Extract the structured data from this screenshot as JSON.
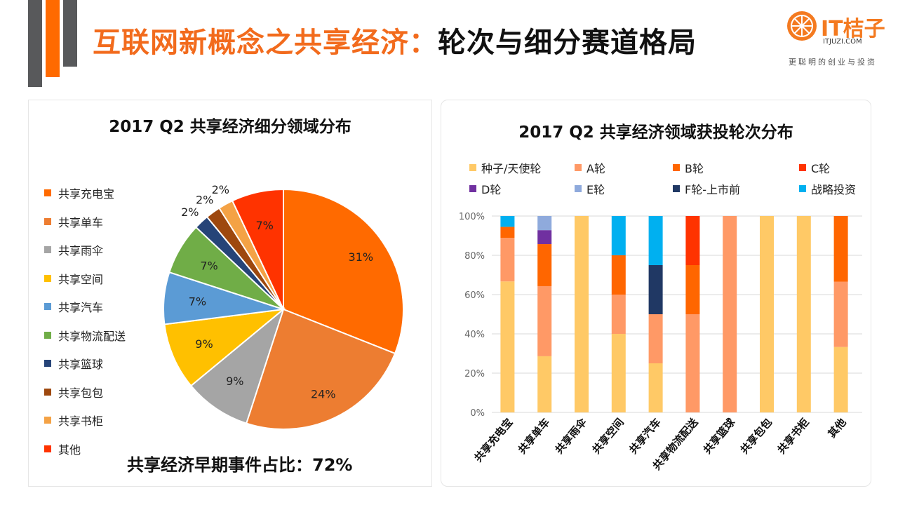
{
  "slide": {
    "title_part1": "互联网新概念之共享经济：",
    "title_part2": "轮次与细分赛道格局",
    "accent_color": "#f26b1d"
  },
  "logo": {
    "icon": "orange-slice-icon",
    "name": "IT桔子",
    "url": "ITJUZI.COM",
    "slogan": "更聪明的创业与投资"
  },
  "summary": {
    "label": "共享经济早期事件占比：72%"
  },
  "chart_data": [
    {
      "type": "pie",
      "title": "2017 Q2 共享经济细分领域分布",
      "legend_position": "left",
      "categories": [
        "共享充电宝",
        "共享单车",
        "共享雨伞",
        "共享空间",
        "共享汽车",
        "共享物流配送",
        "共享篮球",
        "共享包包",
        "共享书柜",
        "其他"
      ],
      "values": [
        31,
        24,
        9,
        9,
        7,
        7,
        2,
        2,
        2,
        7
      ],
      "labels": [
        "31%",
        "24%",
        "9%",
        "9%",
        "7%",
        "7%",
        "2%",
        "2%",
        "2%",
        "7%"
      ],
      "colors": [
        "#ff6a00",
        "#ed7d31",
        "#a5a5a5",
        "#ffc000",
        "#5b9bd5",
        "#70ad47",
        "#264478",
        "#9e480e",
        "#f4a245",
        "#ff3300"
      ]
    },
    {
      "type": "bar",
      "stacked": true,
      "normalized": true,
      "title": "2017 Q2 共享经济领域获投轮次分布",
      "legend_position": "top",
      "categories": [
        "共享充电宝",
        "共享单车",
        "共享雨伞",
        "共享空间",
        "共享汽车",
        "共享物流配送",
        "共享篮球",
        "共享包包",
        "共享书柜",
        "其他"
      ],
      "ylim": [
        0,
        100
      ],
      "yticks": [
        "0%",
        "20%",
        "40%",
        "60%",
        "80%",
        "100%"
      ],
      "grid": true,
      "series": [
        {
          "name": "种子/天使轮",
          "color": "#ffc966",
          "values": [
            66.7,
            28.6,
            100,
            40,
            25,
            0,
            0,
            100,
            100,
            33.3
          ]
        },
        {
          "name": "A轮",
          "color": "#ff9966",
          "values": [
            22.2,
            35.7,
            0,
            20,
            25,
            50,
            100,
            0,
            0,
            33.3
          ]
        },
        {
          "name": "B轮",
          "color": "#ff6600",
          "values": [
            5.6,
            21.4,
            0,
            20,
            0,
            25,
            0,
            0,
            0,
            33.4
          ]
        },
        {
          "name": "C轮",
          "color": "#ff3300",
          "values": [
            0,
            0,
            0,
            0,
            0,
            25,
            0,
            0,
            0,
            0
          ]
        },
        {
          "name": "D轮",
          "color": "#7030a0",
          "values": [
            0,
            7.1,
            0,
            0,
            0,
            0,
            0,
            0,
            0,
            0
          ]
        },
        {
          "name": "E轮",
          "color": "#8faadc",
          "values": [
            0,
            7.2,
            0,
            0,
            0,
            0,
            0,
            0,
            0,
            0
          ]
        },
        {
          "name": "F轮-上市前",
          "color": "#203864",
          "values": [
            0,
            0,
            0,
            0,
            25,
            0,
            0,
            0,
            0,
            0
          ]
        },
        {
          "name": "战略投资",
          "color": "#00b0f0",
          "values": [
            5.5,
            0,
            0,
            20,
            25,
            0,
            0,
            0,
            0,
            0
          ]
        }
      ]
    }
  ]
}
